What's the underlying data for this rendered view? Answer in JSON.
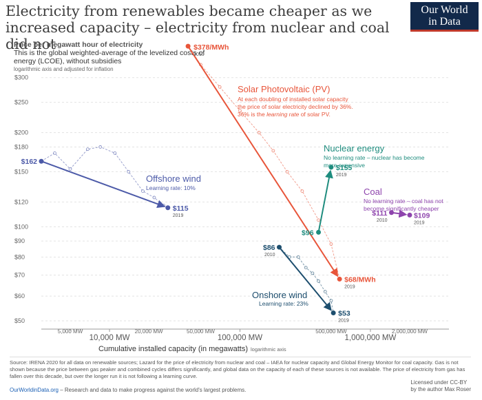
{
  "title": "Electricity from renewables became cheaper as we increased capacity – electricity from nuclear and coal did not",
  "logo": {
    "line1": "Our World",
    "line2": "in Data",
    "bar_color": "#c0392b",
    "bg_color": "#12294a"
  },
  "subtitle": {
    "heading": "Price per megawatt hour of electricity",
    "description": "This is the global weighted-average of the levelized costs of energy (LCOE), without subsidies",
    "axis_note": "logarithmic axis and adjusted for inflation"
  },
  "chart_data": {
    "type": "scatter",
    "title": "Electricity from renewables became cheaper as we increased capacity – electricity from nuclear and coal did not",
    "xlabel": "Cumulative installed capacity (in megawatts)",
    "xlabel_note": "logarithmic axis",
    "ylabel": "Price per megawatt hour of electricity",
    "x_scale": "log",
    "y_scale": "log",
    "xlim": [
      3000,
      4000000
    ],
    "ylim": [
      49,
      320
    ],
    "y_ticks": [
      {
        "value": 50,
        "label": "$50"
      },
      {
        "value": 60,
        "label": "$60"
      },
      {
        "value": 70,
        "label": "$70"
      },
      {
        "value": 80,
        "label": "$80"
      },
      {
        "value": 90,
        "label": "$90"
      },
      {
        "value": 100,
        "label": "$100"
      },
      {
        "value": 120,
        "label": "$120"
      },
      {
        "value": 150,
        "label": "$150"
      },
      {
        "value": 180,
        "label": "$180"
      },
      {
        "value": 200,
        "label": "$200"
      },
      {
        "value": 250,
        "label": "$250"
      },
      {
        "value": 300,
        "label": "$300"
      }
    ],
    "x_ticks_major": [
      {
        "value": 10000,
        "label": "10,000 MW"
      },
      {
        "value": 100000,
        "label": "100,000 MW"
      },
      {
        "value": 1000000,
        "label": "1,000,000 MW"
      }
    ],
    "x_ticks_minor": [
      {
        "value": 5000,
        "label": "5,000 MW"
      },
      {
        "value": 20000,
        "label": "20,000 MW"
      },
      {
        "value": 50000,
        "label": "50,000 MW"
      },
      {
        "value": 500000,
        "label": "500,000 MW"
      },
      {
        "value": 2000000,
        "label": "2,000,000 MW"
      }
    ],
    "series": [
      {
        "name": "Solar Photovoltaic (PV)",
        "color": "#e8553a",
        "desc_lines": [
          "At each doubling of installed solar capacity",
          "the price of solar electricity declined by 36%."
        ],
        "desc_line3_pre": "36% is the ",
        "desc_line3_em": "learning rate",
        "desc_line3_post": " of solar PV.",
        "start": {
          "x": 40000,
          "y": 378,
          "label": "$378/MWh",
          "year": "2010"
        },
        "end": {
          "x": 580000,
          "y": 68,
          "label": "$68/MWh",
          "year": "2019"
        },
        "yearly": [
          [
            40000,
            378
          ],
          [
            50000,
            330
          ],
          [
            70000,
            280
          ],
          [
            100000,
            235
          ],
          [
            140000,
            200
          ],
          [
            180000,
            175
          ],
          [
            230000,
            150
          ],
          [
            300000,
            130
          ],
          [
            400000,
            105
          ],
          [
            500000,
            88
          ],
          [
            580000,
            68
          ]
        ]
      },
      {
        "name": "Nuclear energy",
        "color": "#1e8c7e",
        "desc_lines": [
          "No learning rate – nuclear has become",
          "more expensive"
        ],
        "start": {
          "x": 400000,
          "y": 96,
          "label": "$96",
          "year": ""
        },
        "end": {
          "x": 500000,
          "y": 155,
          "label": "$155",
          "year": "2019"
        }
      },
      {
        "name": "Coal",
        "color": "#8e44ad",
        "desc_lines": [
          "No learning rate – coal has not",
          "become significantly cheaper"
        ],
        "start": {
          "x": 1450000,
          "y": 111,
          "label": "$111",
          "year": "2010"
        },
        "end": {
          "x": 2000000,
          "y": 109,
          "label": "$109",
          "year": "2019"
        }
      },
      {
        "name": "Offshore wind",
        "color": "#4c5aa8",
        "desc_lines": [
          "Learning rate: 10%"
        ],
        "start": {
          "x": 3000,
          "y": 162,
          "label": "$162",
          "year": ""
        },
        "end": {
          "x": 28000,
          "y": 115,
          "label": "$115",
          "year": "2019"
        },
        "yearly": [
          [
            3000,
            162
          ],
          [
            3800,
            172
          ],
          [
            5000,
            153
          ],
          [
            6800,
            177
          ],
          [
            8500,
            180
          ],
          [
            11000,
            172
          ],
          [
            14000,
            150
          ],
          [
            18000,
            130
          ],
          [
            22000,
            124
          ],
          [
            26000,
            117
          ],
          [
            28000,
            115
          ]
        ]
      },
      {
        "name": "Onshore wind",
        "color": "#1d4e6e",
        "desc_lines": [
          "Learning rate: 23%"
        ],
        "start": {
          "x": 200000,
          "y": 86,
          "label": "$86",
          "year": "2010"
        },
        "end": {
          "x": 520000,
          "y": 53,
          "label": "$53",
          "year": "2019"
        },
        "yearly": [
          [
            200000,
            86
          ],
          [
            240000,
            80
          ],
          [
            280000,
            80
          ],
          [
            320000,
            74
          ],
          [
            360000,
            71
          ],
          [
            400000,
            67
          ],
          [
            450000,
            62
          ],
          [
            500000,
            58
          ],
          [
            520000,
            53
          ]
        ]
      }
    ]
  },
  "footer": {
    "source": "Source: IRENA 2020 for all data on renewable sources; Lazard for the price of electricity from nuclear and coal – IAEA for nuclear capacity and Global Energy Monitor for coal capacity. Gas is not shown because the price between gas peaker and combined cycles differs significantly, and global data on the capacity of each of these sources is not available. The price of electricity from gas has fallen over this decade, but over the longer run it is not following a learning curve.",
    "link": "OurWorldinData.org",
    "tagline": " – Research and data to make progress against the world's largest problems.",
    "license_line1": "Licensed under CC-BY",
    "license_line2": "by the author Max Roser"
  }
}
